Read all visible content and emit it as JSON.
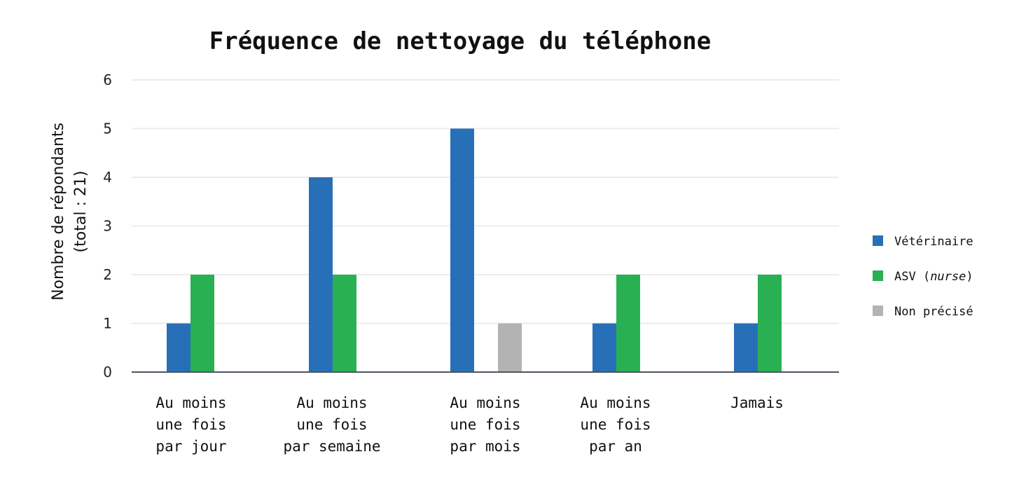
{
  "chart_data": {
    "type": "bar",
    "title": "Fréquence de nettoyage du téléphone",
    "ylabel_lines": [
      "Nombre de répondants",
      "(total : 21)"
    ],
    "xlabel": "",
    "ylim": [
      0,
      6
    ],
    "yticks": [
      0,
      1,
      2,
      3,
      4,
      5,
      6
    ],
    "grid": true,
    "legend_position": "right",
    "categories": [
      [
        "Au moins",
        "une fois",
        "par jour"
      ],
      [
        "Au moins",
        "une fois",
        "par semaine"
      ],
      [
        "Au moins",
        "une fois",
        "par mois"
      ],
      [
        "Au moins",
        "une fois",
        "par an"
      ],
      [
        "Jamais"
      ]
    ],
    "series": [
      {
        "name": "Vétérinaire",
        "color": "#2770b8",
        "values": [
          1,
          4,
          5,
          1,
          1
        ]
      },
      {
        "name": "ASV (nurse)",
        "name_plain": "ASV (",
        "name_italic": "nurse",
        "name_close": ")",
        "color": "#29b053",
        "values": [
          2,
          2,
          0,
          2,
          2
        ]
      },
      {
        "name": "Non précisé",
        "color": "#b3b3b3",
        "values": [
          0,
          0,
          1,
          0,
          0
        ]
      }
    ]
  }
}
